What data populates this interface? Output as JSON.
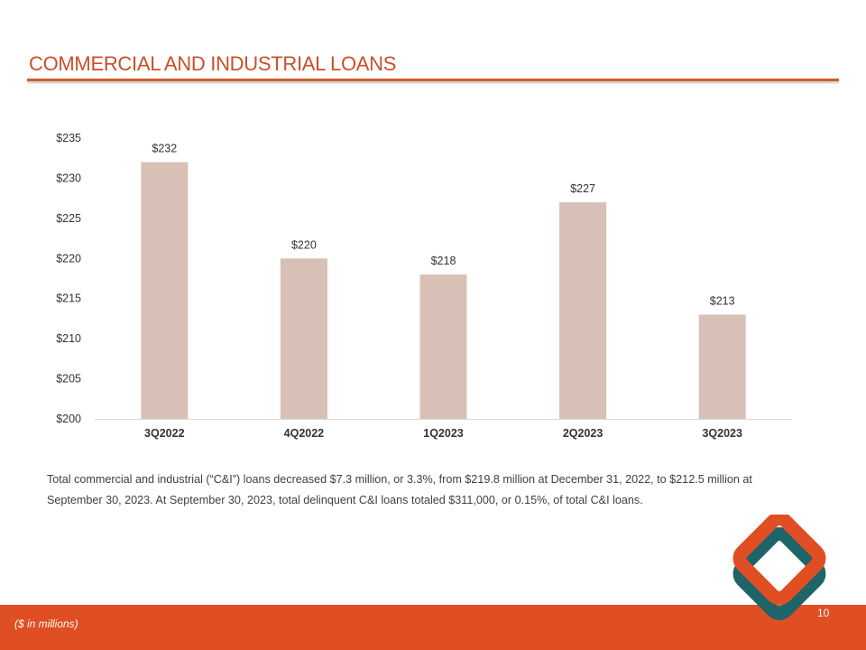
{
  "header": {
    "title": "COMMERCIAL AND INDUSTRIAL LOANS"
  },
  "chart_data": {
    "type": "bar",
    "categories": [
      "3Q2022",
      "4Q2022",
      "1Q2023",
      "2Q2023",
      "3Q2023"
    ],
    "values": [
      232,
      220,
      218,
      227,
      213
    ],
    "data_labels": [
      "$232",
      "$220",
      "$218",
      "$227",
      "$213"
    ],
    "ylim": [
      200,
      235
    ],
    "yticks": [
      200,
      205,
      210,
      215,
      220,
      225,
      230,
      235
    ],
    "ytick_labels": [
      "$200",
      "$205",
      "$210",
      "$215",
      "$220",
      "$225",
      "$230",
      "$235"
    ],
    "grid": false,
    "bar_color": "#d8c0b6"
  },
  "body": {
    "paragraph": "Total commercial and industrial (“C&I”) loans decreased $7.3 million, or 3.3%, from $219.8 million at December 31, 2022, to $212.5 million at September 30, 2023. At September 30, 2023, total delinquent C&I loans totaled $311,000, or 0.15%, of total C&I loans."
  },
  "footer": {
    "note": "($ in millions)",
    "page_number": "10"
  },
  "colors": {
    "accent": "#e04e23",
    "title": "#c8502a",
    "logo_teal": "#1f6469",
    "logo_orange": "#e04e23"
  },
  "logo": {
    "icon": "diamond-logo-icon"
  }
}
